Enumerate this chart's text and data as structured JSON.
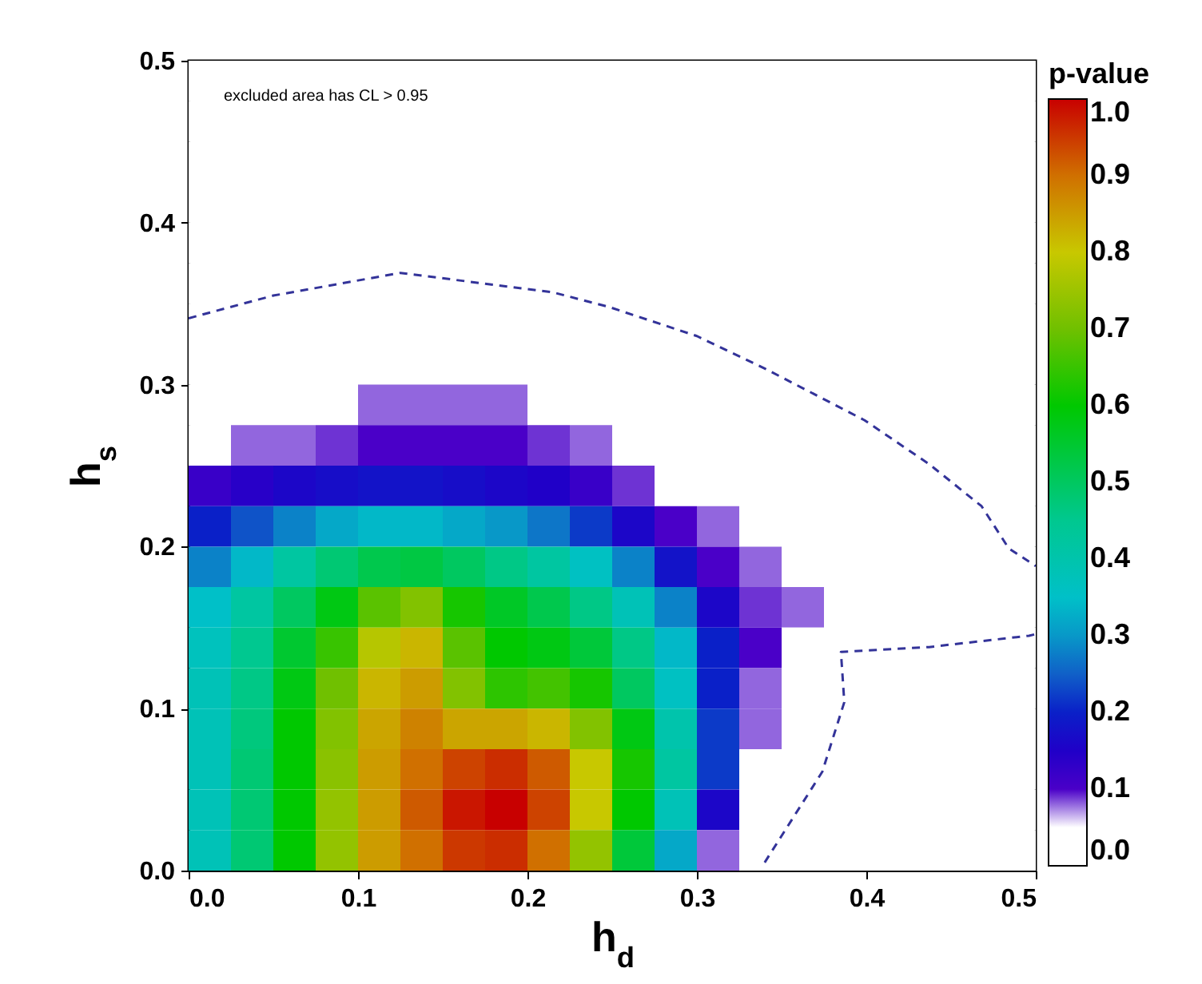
{
  "chart_data": {
    "type": "heatmap",
    "xlabel": "h$_{d}$",
    "ylabel": "h$_{s}$",
    "clabel": "p-value",
    "annotations": [
      "excluded area has CL > 0.95"
    ],
    "xlim": [
      0,
      0.5
    ],
    "ylim": [
      0,
      0.5
    ],
    "xticks": [
      {
        "value": 0,
        "label": "0.0"
      },
      {
        "value": 0.1,
        "label": "0.1"
      },
      {
        "value": 0.2,
        "label": "0.2"
      },
      {
        "value": 0.3,
        "label": "0.3"
      },
      {
        "value": 0.4,
        "label": "0.4"
      },
      {
        "value": 0.5,
        "label": "0.5"
      }
    ],
    "yticks": [
      {
        "value": 0,
        "label": "0.0"
      },
      {
        "value": 0.1,
        "label": "0.1"
      },
      {
        "value": 0.2,
        "label": "0.2"
      },
      {
        "value": 0.3,
        "label": "0.3"
      },
      {
        "value": 0.4,
        "label": "0.4"
      },
      {
        "value": 0.5,
        "label": "0.5"
      }
    ],
    "clim": [
      0,
      1
    ],
    "cticks": [
      {
        "value": 0,
        "label": "0.0"
      },
      {
        "value": 0.1,
        "label": "0.1"
      },
      {
        "value": 0.2,
        "label": "0.2"
      },
      {
        "value": 0.3,
        "label": "0.3"
      },
      {
        "value": 0.4,
        "label": "0.4"
      },
      {
        "value": 0.5,
        "label": "0.5"
      },
      {
        "value": 0.6,
        "label": "0.6"
      },
      {
        "value": 0.7,
        "label": "0.7"
      },
      {
        "value": 0.8,
        "label": "0.8"
      },
      {
        "value": 0.9,
        "label": "0.9"
      },
      {
        "value": 1,
        "label": "1.0"
      }
    ],
    "cells": [
      [
        0,
        0,
        0,
        0,
        0,
        0,
        0,
        0,
        0,
        0,
        0,
        0,
        0,
        0,
        0,
        0,
        0,
        0,
        0,
        0
      ],
      [
        0,
        0,
        0,
        0,
        0,
        0,
        0,
        0,
        0,
        0,
        0,
        0,
        0,
        0,
        0,
        0,
        0,
        0,
        0,
        0
      ],
      [
        0,
        0,
        0,
        0,
        0,
        0,
        0,
        0,
        0,
        0,
        0,
        0,
        0,
        0,
        0,
        0,
        0,
        0,
        0,
        0
      ],
      [
        0,
        0,
        0,
        0,
        0,
        0,
        0,
        0,
        0,
        0,
        0,
        0,
        0,
        0,
        0,
        0,
        0,
        0,
        0,
        0
      ],
      [
        0,
        0,
        0,
        0,
        0,
        0,
        0,
        0,
        0,
        0,
        0,
        0,
        0,
        0,
        0,
        0,
        0,
        0,
        0,
        0
      ],
      [
        0,
        0,
        0,
        0,
        0,
        0,
        0,
        0,
        0,
        0,
        0,
        0,
        0,
        0,
        0,
        0,
        0,
        0,
        0,
        0
      ],
      [
        0,
        0,
        0,
        0,
        0,
        0,
        0,
        0,
        0,
        0,
        0,
        0,
        0,
        0,
        0,
        0,
        0,
        0,
        0,
        0
      ],
      [
        0,
        0,
        0,
        0,
        0,
        0,
        0,
        0,
        0,
        0,
        0,
        0,
        0,
        0,
        0,
        0,
        0,
        0,
        0,
        0
      ],
      [
        0,
        0,
        0,
        0,
        0.08,
        0.08,
        0.08,
        0.08,
        0,
        0,
        0,
        0,
        0,
        0,
        0,
        0,
        0,
        0,
        0,
        0
      ],
      [
        0,
        0.08,
        0.08,
        0.09,
        0.1,
        0.1,
        0.1,
        0.1,
        0.09,
        0.08,
        0,
        0,
        0,
        0,
        0,
        0,
        0,
        0,
        0,
        0
      ],
      [
        0.12,
        0.14,
        0.16,
        0.17,
        0.18,
        0.18,
        0.17,
        0.16,
        0.15,
        0.12,
        0.09,
        0,
        0,
        0,
        0,
        0,
        0,
        0,
        0,
        0
      ],
      [
        0.2,
        0.24,
        0.28,
        0.32,
        0.34,
        0.34,
        0.32,
        0.3,
        0.27,
        0.22,
        0.16,
        0.1,
        0.08,
        0,
        0,
        0,
        0,
        0,
        0,
        0
      ],
      [
        0.28,
        0.34,
        0.42,
        0.48,
        0.52,
        0.53,
        0.5,
        0.46,
        0.42,
        0.36,
        0.28,
        0.18,
        0.1,
        0.08,
        0,
        0,
        0,
        0,
        0,
        0
      ],
      [
        0.35,
        0.42,
        0.5,
        0.58,
        0.68,
        0.72,
        0.62,
        0.56,
        0.52,
        0.46,
        0.38,
        0.28,
        0.16,
        0.09,
        0.08,
        0,
        0,
        0,
        0,
        0
      ],
      [
        0.37,
        0.45,
        0.55,
        0.65,
        0.78,
        0.82,
        0.68,
        0.6,
        0.58,
        0.54,
        0.46,
        0.34,
        0.2,
        0.1,
        0,
        0,
        0,
        0,
        0,
        0
      ],
      [
        0.38,
        0.46,
        0.58,
        0.7,
        0.82,
        0.85,
        0.72,
        0.64,
        0.66,
        0.62,
        0.5,
        0.36,
        0.2,
        0.08,
        0,
        0,
        0,
        0,
        0,
        0
      ],
      [
        0.38,
        0.47,
        0.6,
        0.72,
        0.84,
        0.88,
        0.84,
        0.84,
        0.82,
        0.72,
        0.58,
        0.4,
        0.22,
        0.08,
        0,
        0,
        0,
        0,
        0,
        0
      ],
      [
        0.38,
        0.48,
        0.6,
        0.73,
        0.85,
        0.9,
        0.94,
        0.96,
        0.92,
        0.8,
        0.62,
        0.42,
        0.22,
        0,
        0,
        0,
        0,
        0,
        0,
        0
      ],
      [
        0.38,
        0.48,
        0.6,
        0.74,
        0.85,
        0.92,
        0.98,
        1.0,
        0.94,
        0.8,
        0.6,
        0.38,
        0.16,
        0,
        0,
        0,
        0,
        0,
        0,
        0
      ],
      [
        0.38,
        0.48,
        0.6,
        0.74,
        0.85,
        0.9,
        0.95,
        0.96,
        0.9,
        0.74,
        0.54,
        0.32,
        0.08,
        0,
        0,
        0,
        0,
        0,
        0,
        0
      ]
    ],
    "series": [
      {
        "type": "line",
        "color": "#333399",
        "line_style": "dashed",
        "x": [
          0,
          0.05,
          0.125,
          0.215,
          0.248,
          0.3,
          0.34,
          0.399,
          0.437,
          0.468,
          0.484,
          0.5
        ],
        "values": [
          0.341,
          0.355,
          0.369,
          0.357,
          0.348,
          0.33,
          0.31,
          0.278,
          0.251,
          0.225,
          0.199,
          0.188
        ]
      },
      {
        "type": "line",
        "color": "#333399",
        "line_style": "dashed",
        "x": [
          0.34,
          0.374,
          0.387,
          0.385,
          0.437,
          0.496,
          0.5
        ],
        "values": [
          0.005,
          0.061,
          0.104,
          0.135,
          0.138,
          0.145,
          0.146
        ]
      }
    ]
  }
}
